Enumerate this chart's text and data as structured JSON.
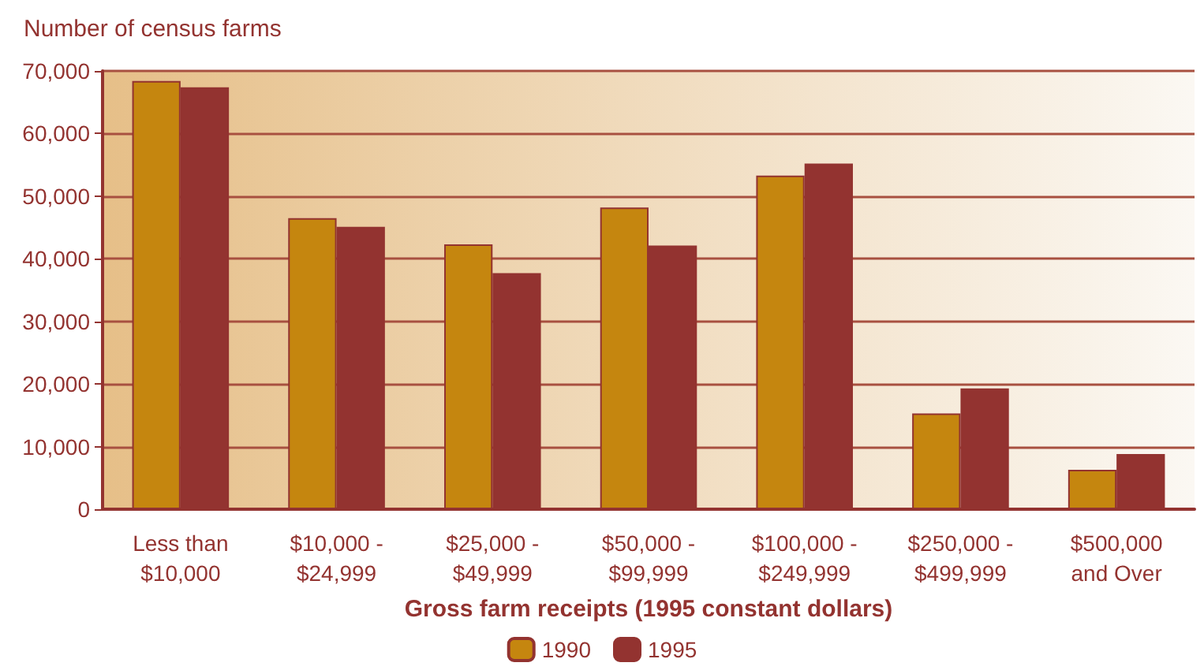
{
  "chart_data": {
    "type": "bar",
    "ylabel": "Number of census farms",
    "xlabel": "Gross farm receipts (1995 constant dollars)",
    "categories": [
      "Less than\n$10,000",
      "$10,000 -\n$24,999",
      "$25,000 -\n$49,999",
      "$50,000 -\n$99,999",
      "$100,000 -\n$249,999",
      "$250,000 -\n$499,999",
      "$500,000\nand Over"
    ],
    "series": [
      {
        "name": "1990",
        "color": "#c5860f",
        "values": [
          68400,
          46500,
          42300,
          48200,
          53300,
          15300,
          6300
        ]
      },
      {
        "name": "1995",
        "color": "#933330",
        "values": [
          67400,
          45100,
          37700,
          42100,
          55200,
          19300,
          8800
        ]
      }
    ],
    "ylim": [
      0,
      70000
    ],
    "yticks": [
      0,
      {
        "value": 10000,
        "label": "10,000"
      },
      {
        "value": 20000,
        "label": "20,000"
      },
      {
        "value": 30000,
        "label": "30,000"
      },
      {
        "value": 40000,
        "label": "40,000"
      },
      {
        "value": 50000,
        "label": "50,000"
      },
      {
        "value": 60000,
        "label": "60,000"
      },
      {
        "value": 70000,
        "label": "70,000"
      }
    ],
    "grid": "y",
    "legend": "bottom"
  }
}
